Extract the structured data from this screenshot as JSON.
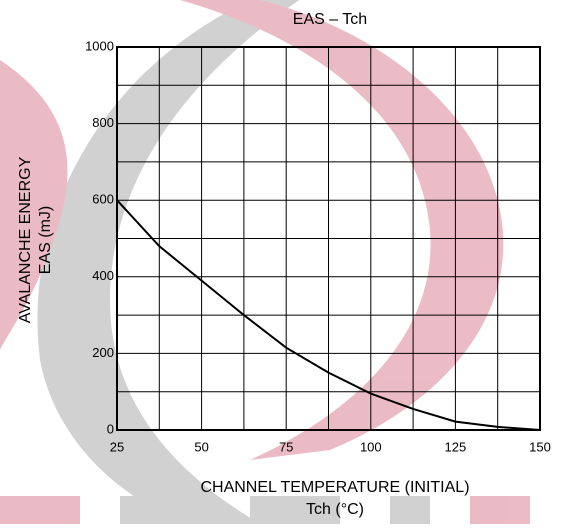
{
  "chart_data": {
    "type": "line",
    "title": "EAS – Tch",
    "y_label_lines": [
      "AVALANCHE ENERGY",
      "EAS   (mJ)"
    ],
    "x_label_lines": [
      "CHANNEL TEMPERATURE (INITIAL)",
      "Tch   (°C)"
    ],
    "x": [
      25,
      37.5,
      50,
      62.5,
      75,
      87.5,
      100,
      112.5,
      125,
      137.5,
      150
    ],
    "values": [
      600,
      480,
      390,
      300,
      215,
      150,
      95,
      55,
      22,
      8,
      0
    ],
    "color": "#000000",
    "xlim": [
      25,
      150
    ],
    "ylim": [
      0,
      1000
    ],
    "xticks": [
      25,
      50,
      75,
      100,
      125,
      150
    ],
    "yticks": [
      0,
      200,
      400,
      600,
      800,
      1000
    ],
    "x_minor_ticks": [
      37.5,
      62.5,
      87.5,
      112.5,
      137.5
    ],
    "y_minor_ticks": [
      100,
      300,
      500,
      700,
      900
    ],
    "grid": true
  }
}
